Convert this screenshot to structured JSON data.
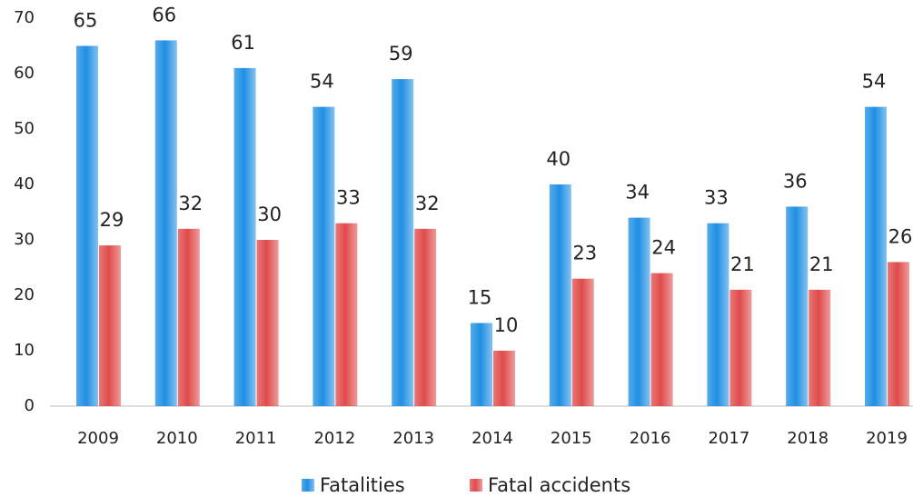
{
  "chart_data": {
    "type": "bar",
    "categories": [
      "2009",
      "2010",
      "2011",
      "2012",
      "2013",
      "2014",
      "2015",
      "2016",
      "2017",
      "2018",
      "2019"
    ],
    "series": [
      {
        "name": "Fatalities",
        "color": "#1f8fe3",
        "values": [
          65,
          66,
          61,
          54,
          59,
          15,
          40,
          34,
          33,
          36,
          54
        ]
      },
      {
        "name": "Fatal accidents",
        "color": "#e04b4b",
        "values": [
          29,
          32,
          30,
          33,
          32,
          10,
          23,
          24,
          21,
          21,
          26
        ]
      }
    ],
    "ylim": [
      0,
      70
    ],
    "yticks": [
      0,
      10,
      20,
      30,
      40,
      50,
      60,
      70
    ],
    "grid": false,
    "legend": "bottom"
  }
}
